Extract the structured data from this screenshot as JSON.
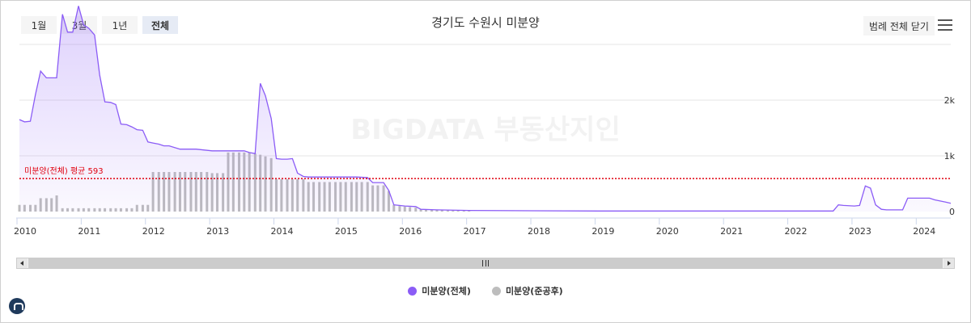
{
  "range_buttons": [
    {
      "label": "1월",
      "active": false
    },
    {
      "label": "3월",
      "active": false
    },
    {
      "label": "1년",
      "active": false
    },
    {
      "label": "전체",
      "active": true
    }
  ],
  "legend_toggle_label": "범례 전체 닫기",
  "watermark": "BIGDATA 부동산지인",
  "chart_data": {
    "type": "line+bar",
    "title": "경기도 수원시 미분양",
    "x_range": [
      2010.0,
      2024.5
    ],
    "y_range": [
      0,
      3000
    ],
    "y_ticks": [
      0,
      1000,
      2000
    ],
    "y_tick_labels": [
      "0",
      "1k",
      "2k"
    ],
    "x_ticks": [
      2010,
      2011,
      2012,
      2013,
      2014,
      2015,
      2016,
      2017,
      2018,
      2019,
      2020,
      2021,
      2022,
      2023,
      2024
    ],
    "x_tick_labels": [
      "2010",
      "2011",
      "2012",
      "2013",
      "2014",
      "2015",
      "2016",
      "2017",
      "2018",
      "2019",
      "2020",
      "2021",
      "2022",
      "2023",
      "2024"
    ],
    "average": {
      "label": "미분양(전체) 평균 593",
      "value": 593,
      "color": "#e0000f"
    },
    "grid": true,
    "legend_position": "bottom",
    "series": [
      {
        "name": "미분양(전체)",
        "type": "area",
        "color": "#8b5cf6",
        "x": [
          2010.0,
          2010.08,
          2010.17,
          2010.25,
          2010.33,
          2010.42,
          2010.5,
          2010.58,
          2010.67,
          2010.75,
          2010.83,
          2010.92,
          2011.0,
          2011.08,
          2011.17,
          2011.25,
          2011.33,
          2011.42,
          2011.5,
          2011.58,
          2011.67,
          2011.75,
          2011.83,
          2011.92,
          2012.0,
          2012.08,
          2012.17,
          2012.25,
          2012.33,
          2012.5,
          2012.75,
          2013.0,
          2013.25,
          2013.5,
          2013.58,
          2013.67,
          2013.75,
          2013.83,
          2013.92,
          2014.0,
          2014.08,
          2014.17,
          2014.25,
          2014.33,
          2014.42,
          2014.5,
          2014.75,
          2015.0,
          2015.25,
          2015.42,
          2015.5,
          2015.58,
          2015.67,
          2015.75,
          2015.83,
          2016.0,
          2016.17,
          2016.25,
          2016.5,
          2017.0,
          2018.0,
          2019.0,
          2020.0,
          2021.0,
          2022.0,
          2022.67,
          2022.75,
          2022.83,
          2023.0,
          2023.08,
          2023.17,
          2023.25,
          2023.33,
          2023.42,
          2023.5,
          2023.75,
          2023.83,
          2024.0,
          2024.17,
          2024.25,
          2024.42,
          2024.5
        ],
        "y": [
          1650,
          1610,
          1620,
          2100,
          2520,
          2400,
          2400,
          2400,
          3540,
          3220,
          3220,
          3690,
          3350,
          3290,
          3170,
          2450,
          1970,
          1960,
          1920,
          1570,
          1560,
          1520,
          1470,
          1460,
          1250,
          1230,
          1210,
          1180,
          1180,
          1120,
          1120,
          1090,
          1090,
          1090,
          1060,
          1040,
          2300,
          2080,
          1670,
          950,
          940,
          940,
          950,
          690,
          630,
          620,
          620,
          620,
          620,
          610,
          520,
          520,
          520,
          380,
          120,
          100,
          90,
          40,
          30,
          20,
          15,
          10,
          10,
          10,
          10,
          10,
          120,
          110,
          100,
          110,
          460,
          420,
          120,
          40,
          30,
          30,
          240,
          240,
          240,
          210,
          170,
          150
        ]
      },
      {
        "name": "미분양(준공후)",
        "type": "bar",
        "color": "#bdbdbd",
        "x": [
          2010.0,
          2010.08,
          2010.17,
          2010.25,
          2010.33,
          2010.42,
          2010.5,
          2010.58,
          2010.67,
          2010.75,
          2010.83,
          2010.92,
          2011.0,
          2011.08,
          2011.17,
          2011.25,
          2011.33,
          2011.42,
          2011.5,
          2011.58,
          2011.67,
          2011.75,
          2011.83,
          2011.92,
          2012.0,
          2012.08,
          2012.17,
          2012.25,
          2012.33,
          2012.42,
          2012.5,
          2012.58,
          2012.67,
          2012.75,
          2012.83,
          2012.92,
          2013.0,
          2013.08,
          2013.17,
          2013.25,
          2013.33,
          2013.42,
          2013.5,
          2013.58,
          2013.67,
          2013.75,
          2013.83,
          2013.92,
          2014.0,
          2014.08,
          2014.17,
          2014.25,
          2014.33,
          2014.42,
          2014.5,
          2014.58,
          2014.67,
          2014.75,
          2014.83,
          2014.92,
          2015.0,
          2015.08,
          2015.17,
          2015.25,
          2015.33,
          2015.42,
          2015.5,
          2015.58,
          2015.67,
          2015.75,
          2015.83,
          2015.92,
          2016.0,
          2016.08,
          2016.17,
          2016.25,
          2016.33,
          2016.42,
          2016.5,
          2016.58,
          2016.67,
          2016.75,
          2016.83,
          2016.92,
          2017.0
        ],
        "y": [
          120,
          120,
          120,
          120,
          240,
          240,
          240,
          290,
          60,
          60,
          60,
          60,
          60,
          60,
          60,
          60,
          60,
          60,
          60,
          60,
          60,
          60,
          120,
          120,
          120,
          710,
          710,
          710,
          710,
          710,
          710,
          710,
          710,
          710,
          710,
          710,
          690,
          690,
          690,
          1060,
          1060,
          1060,
          1060,
          1060,
          1040,
          1020,
          990,
          960,
          580,
          580,
          580,
          580,
          580,
          580,
          530,
          530,
          530,
          530,
          530,
          530,
          530,
          530,
          530,
          530,
          530,
          530,
          470,
          470,
          470,
          370,
          120,
          100,
          90,
          80,
          70,
          40,
          30,
          30,
          30,
          30,
          20,
          20,
          20,
          20,
          15
        ]
      }
    ]
  }
}
